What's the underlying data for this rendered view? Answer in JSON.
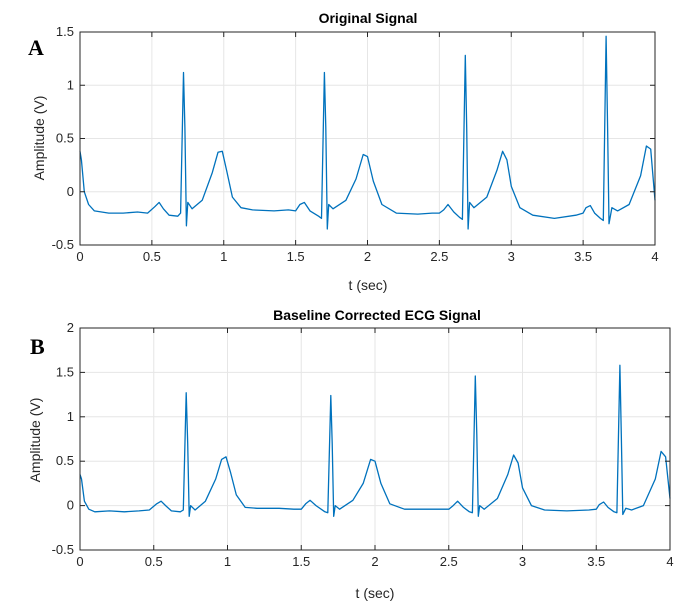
{
  "chart_data": [
    {
      "type": "line",
      "panel_label": "A",
      "title": "Original Signal",
      "xlabel": "t (sec)",
      "ylabel": "Amplitude (V)",
      "xlim": [
        0,
        4
      ],
      "ylim": [
        -0.5,
        1.5
      ],
      "xticks": [
        0,
        0.5,
        1,
        1.5,
        2,
        2.5,
        3,
        3.5,
        4
      ],
      "yticks": [
        -0.5,
        0,
        0.5,
        1,
        1.5
      ],
      "xtick_labels": [
        "0",
        "0.5",
        "1",
        "1.5",
        "2",
        "2.5",
        "3",
        "3.5",
        "4"
      ],
      "ytick_labels": [
        "-0.5",
        "0",
        "0.5",
        "1",
        "1.5"
      ],
      "grid": true,
      "color": "#0072BD",
      "series": [
        {
          "x": [
            0,
            0.01,
            0.03,
            0.06,
            0.1,
            0.2,
            0.3,
            0.4,
            0.47,
            0.52,
            0.55,
            0.58,
            0.62,
            0.68,
            0.7,
            0.72,
            0.73,
            0.74,
            0.75,
            0.78,
            0.85,
            0.92,
            0.96,
            0.99,
            1.02,
            1.06,
            1.12,
            1.2,
            1.35,
            1.45,
            1.5,
            1.53,
            1.56,
            1.6,
            1.66,
            1.68,
            1.7,
            1.71,
            1.72,
            1.73,
            1.76,
            1.85,
            1.92,
            1.97,
            2.0,
            2.04,
            2.1,
            2.2,
            2.35,
            2.45,
            2.5,
            2.53,
            2.56,
            2.6,
            2.64,
            2.66,
            2.68,
            2.69,
            2.7,
            2.71,
            2.74,
            2.83,
            2.9,
            2.94,
            2.97,
            3.0,
            3.06,
            3.15,
            3.3,
            3.45,
            3.5,
            3.52,
            3.55,
            3.58,
            3.62,
            3.64,
            3.66,
            3.67,
            3.68,
            3.7,
            3.74,
            3.82,
            3.9,
            3.94,
            3.97,
            4.0
          ],
          "y": [
            0.38,
            0.3,
            0.0,
            -0.12,
            -0.18,
            -0.2,
            -0.2,
            -0.19,
            -0.2,
            -0.14,
            -0.1,
            -0.16,
            -0.22,
            -0.23,
            -0.2,
            1.12,
            0.6,
            -0.32,
            -0.1,
            -0.16,
            -0.08,
            0.18,
            0.37,
            0.38,
            0.2,
            -0.05,
            -0.15,
            -0.17,
            -0.18,
            -0.17,
            -0.18,
            -0.12,
            -0.1,
            -0.18,
            -0.23,
            -0.25,
            1.12,
            0.6,
            -0.35,
            -0.12,
            -0.16,
            -0.08,
            0.12,
            0.35,
            0.33,
            0.1,
            -0.12,
            -0.2,
            -0.21,
            -0.2,
            -0.2,
            -0.17,
            -0.12,
            -0.19,
            -0.24,
            -0.26,
            1.28,
            0.6,
            -0.35,
            -0.1,
            -0.15,
            -0.05,
            0.2,
            0.38,
            0.3,
            0.05,
            -0.15,
            -0.22,
            -0.25,
            -0.22,
            -0.2,
            -0.15,
            -0.13,
            -0.2,
            -0.25,
            -0.27,
            1.46,
            0.6,
            -0.3,
            -0.15,
            -0.18,
            -0.12,
            0.15,
            0.43,
            0.4,
            -0.08
          ]
        }
      ]
    },
    {
      "type": "line",
      "panel_label": "B",
      "title": "Baseline Corrected ECG Signal",
      "xlabel": "t (sec)",
      "ylabel": "Amplitude (V)",
      "xlim": [
        0,
        4
      ],
      "ylim": [
        -0.5,
        2
      ],
      "xticks": [
        0,
        0.5,
        1,
        1.5,
        2,
        2.5,
        3,
        3.5,
        4
      ],
      "yticks": [
        -0.5,
        0,
        0.5,
        1,
        1.5,
        2
      ],
      "xtick_labels": [
        "0",
        "0.5",
        "1",
        "1.5",
        "2",
        "2.5",
        "3",
        "3.5",
        "4"
      ],
      "ytick_labels": [
        "-0.5",
        "0",
        "0.5",
        "1",
        "1.5",
        "2"
      ],
      "grid": true,
      "color": "#0072BD",
      "series": [
        {
          "x": [
            0,
            0.01,
            0.03,
            0.06,
            0.1,
            0.2,
            0.3,
            0.4,
            0.47,
            0.52,
            0.55,
            0.58,
            0.62,
            0.68,
            0.7,
            0.72,
            0.73,
            0.74,
            0.75,
            0.78,
            0.85,
            0.92,
            0.96,
            0.99,
            1.02,
            1.06,
            1.12,
            1.2,
            1.35,
            1.45,
            1.5,
            1.53,
            1.56,
            1.6,
            1.66,
            1.68,
            1.7,
            1.71,
            1.72,
            1.73,
            1.76,
            1.85,
            1.92,
            1.97,
            2.0,
            2.04,
            2.1,
            2.2,
            2.35,
            2.45,
            2.5,
            2.53,
            2.56,
            2.6,
            2.64,
            2.66,
            2.68,
            2.69,
            2.7,
            2.71,
            2.74,
            2.83,
            2.9,
            2.94,
            2.97,
            3.0,
            3.06,
            3.15,
            3.3,
            3.45,
            3.5,
            3.52,
            3.55,
            3.58,
            3.62,
            3.64,
            3.66,
            3.67,
            3.68,
            3.7,
            3.74,
            3.82,
            3.9,
            3.94,
            3.97,
            4.0
          ],
          "y": [
            0.35,
            0.3,
            0.05,
            -0.04,
            -0.07,
            -0.06,
            -0.07,
            -0.06,
            -0.05,
            0.02,
            0.05,
            0.0,
            -0.06,
            -0.07,
            -0.05,
            1.27,
            0.7,
            -0.12,
            0.0,
            -0.05,
            0.05,
            0.3,
            0.52,
            0.55,
            0.38,
            0.12,
            -0.02,
            -0.03,
            -0.03,
            -0.04,
            -0.04,
            0.02,
            0.06,
            0.0,
            -0.07,
            -0.08,
            1.24,
            0.7,
            -0.12,
            0.0,
            -0.04,
            0.06,
            0.25,
            0.52,
            0.5,
            0.25,
            0.02,
            -0.04,
            -0.04,
            -0.04,
            -0.04,
            0.0,
            0.05,
            -0.02,
            -0.07,
            -0.08,
            1.46,
            0.8,
            -0.12,
            0.0,
            -0.04,
            0.08,
            0.35,
            0.57,
            0.48,
            0.2,
            0.0,
            -0.05,
            -0.06,
            -0.05,
            -0.04,
            0.01,
            0.04,
            -0.02,
            -0.07,
            -0.08,
            1.58,
            0.8,
            -0.1,
            -0.03,
            -0.05,
            0.0,
            0.3,
            0.61,
            0.55,
            0.08
          ]
        }
      ]
    }
  ]
}
